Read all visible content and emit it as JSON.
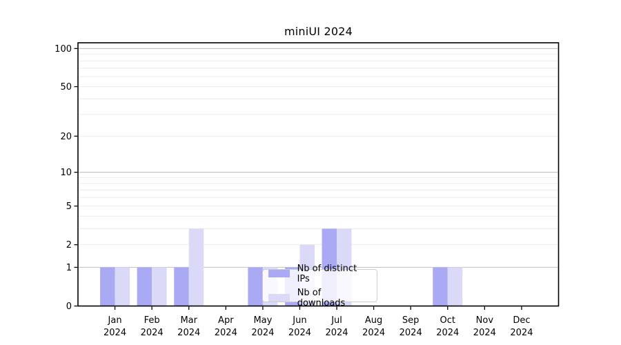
{
  "chart_data": {
    "type": "bar",
    "title": "miniUI 2024",
    "categories": [
      "Jan",
      "Feb",
      "Mar",
      "Apr",
      "May",
      "Jun",
      "Jul",
      "Aug",
      "Sep",
      "Oct",
      "Nov",
      "Dec"
    ],
    "category_year": "2024",
    "series": [
      {
        "name": "Nb of distinct IPs",
        "color": "#a9a9f4",
        "values": [
          1,
          1,
          1,
          0,
          1,
          1,
          3,
          0,
          0,
          1,
          0,
          0
        ]
      },
      {
        "name": "Nb of downloads",
        "color": "#dadaf8",
        "values": [
          1,
          1,
          3,
          0,
          1,
          2,
          3,
          0,
          0,
          1,
          0,
          0
        ]
      }
    ],
    "xlabel": "",
    "ylabel": "",
    "yticks": [
      100,
      50,
      20,
      10,
      5,
      2,
      1,
      0
    ],
    "ylim": [
      0,
      111
    ],
    "scale": "log1p",
    "grid": {
      "minor": [
        2,
        3,
        4,
        5,
        6,
        7,
        8,
        9,
        20,
        30,
        40,
        50,
        60,
        70,
        80,
        90
      ],
      "major": [
        1,
        10,
        100
      ],
      "minor_color": "#ebebeb",
      "major_color": "#c6c6c6"
    },
    "legend_position": "inside-bottom-center"
  }
}
